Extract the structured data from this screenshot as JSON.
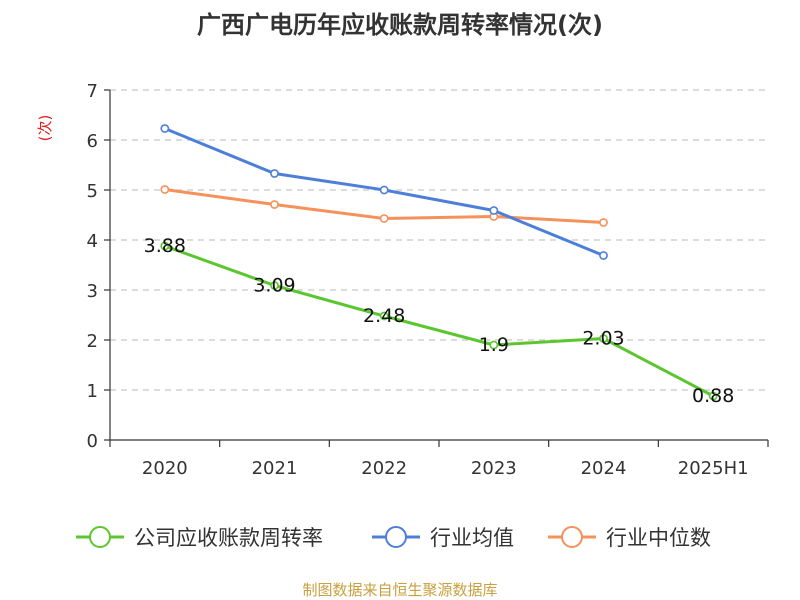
{
  "chart_data": {
    "type": "line",
    "title": "广西广电历年应收账款周转率情况(次)",
    "ylabel": "(次)",
    "xlabel": "",
    "categories": [
      "2020",
      "2021",
      "2022",
      "2023",
      "2024",
      "2025H1"
    ],
    "ylim": [
      0,
      7
    ],
    "yticks": [
      0,
      1,
      2,
      3,
      4,
      5,
      6,
      7
    ],
    "grid": true,
    "legend_position": "bottom",
    "series": [
      {
        "name": "公司应收账款周转率",
        "color": "#5cc630",
        "values": [
          3.88,
          3.09,
          2.48,
          1.9,
          2.03,
          0.88
        ],
        "data_labels": [
          "3.88",
          "3.09",
          "2.48",
          "1.9",
          "2.03",
          "0.88"
        ]
      },
      {
        "name": "行业均值",
        "color": "#4e7fd8",
        "values": [
          6.23,
          5.33,
          5.0,
          4.59,
          3.69,
          null
        ]
      },
      {
        "name": "行业中位数",
        "color": "#f5915a",
        "values": [
          5.01,
          4.71,
          4.43,
          4.47,
          4.35,
          null
        ]
      }
    ],
    "source": "制图数据来自恒生聚源数据库"
  }
}
